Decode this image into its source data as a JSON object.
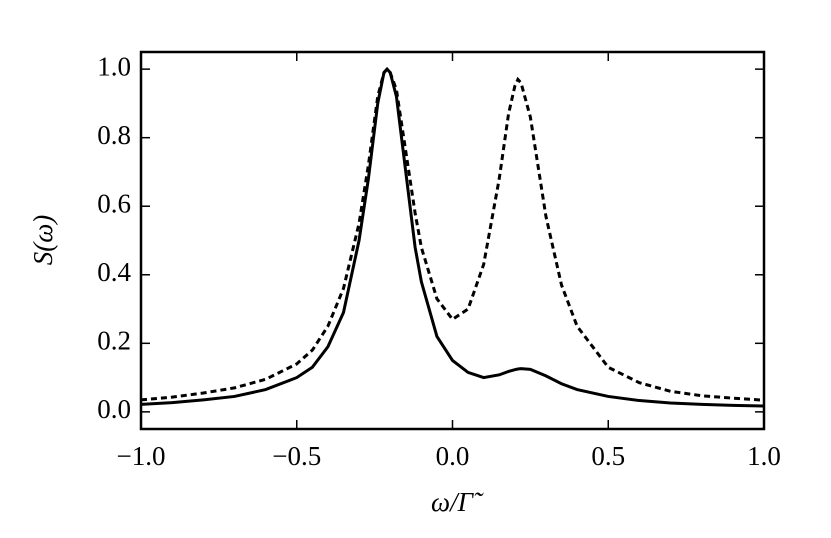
{
  "chart_data": {
    "type": "line",
    "x_label": "ω/Γ̃",
    "y_label": "S(ω)",
    "x": [
      -1,
      -0.9,
      -0.8,
      -0.7,
      -0.6,
      -0.5,
      -0.45,
      -0.4,
      -0.35,
      -0.3,
      -0.27,
      -0.24,
      -0.22,
      -0.21,
      -0.2,
      -0.18,
      -0.15,
      -0.12,
      -0.1,
      -0.05,
      0,
      0.05,
      0.1,
      0.15,
      0.18,
      0.2,
      0.21,
      0.22,
      0.25,
      0.3,
      0.35,
      0.4,
      0.5,
      0.6,
      0.7,
      0.8,
      0.9,
      1.0
    ],
    "series": [
      {
        "color": "#000000",
        "linestyle": "solid",
        "values": [
          0.022,
          0.027,
          0.035,
          0.045,
          0.065,
          0.1,
          0.13,
          0.19,
          0.29,
          0.5,
          0.68,
          0.9,
          0.99,
          1.0,
          0.99,
          0.92,
          0.7,
          0.48,
          0.38,
          0.22,
          0.15,
          0.115,
          0.1,
          0.108,
          0.118,
          0.123,
          0.125,
          0.126,
          0.124,
          0.105,
          0.082,
          0.065,
          0.045,
          0.033,
          0.026,
          0.022,
          0.019,
          0.017
        ]
      },
      {
        "color": "#000000",
        "linestyle": "dashed",
        "values": [
          0.035,
          0.043,
          0.055,
          0.07,
          0.095,
          0.14,
          0.18,
          0.25,
          0.36,
          0.55,
          0.72,
          0.92,
          0.99,
          1.0,
          0.99,
          0.94,
          0.76,
          0.58,
          0.48,
          0.33,
          0.27,
          0.3,
          0.43,
          0.68,
          0.87,
          0.95,
          0.97,
          0.96,
          0.86,
          0.57,
          0.37,
          0.25,
          0.13,
          0.085,
          0.06,
          0.047,
          0.04,
          0.034
        ]
      }
    ],
    "xlim": [
      -1,
      1
    ],
    "xticks": [
      {
        "value": -1,
        "label": "−1.0"
      },
      {
        "value": -0.5,
        "label": "−0.5"
      },
      {
        "value": 0,
        "label": "0.0"
      },
      {
        "value": 0.5,
        "label": "0.5"
      },
      {
        "value": 1,
        "label": "1.0"
      }
    ],
    "ylim": [
      -0.05,
      1.05
    ],
    "yticks": [
      {
        "value": 0,
        "label": "0.0"
      },
      0.2,
      0.4,
      0.6,
      0.8,
      {
        "value": 1,
        "label": "1.0"
      }
    ],
    "grid": false
  }
}
